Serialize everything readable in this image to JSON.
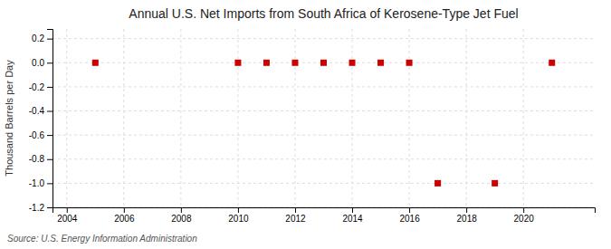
{
  "chart_data": {
    "type": "scatter",
    "title": "Annual U.S. Net Imports from South Africa of Kerosene-Type Jet Fuel",
    "ylabel": "Thousand Barrels per Day",
    "source": "Source: U.S. Energy Information Administration",
    "x": [
      2005,
      2010,
      2011,
      2012,
      2013,
      2014,
      2015,
      2016,
      2017,
      2019,
      2021
    ],
    "values": [
      0,
      0,
      0,
      0,
      0,
      0,
      0,
      0,
      -1,
      -1,
      0
    ],
    "color": "#cc0000",
    "marker": "square",
    "xlim": [
      2003.5,
      2022.5
    ],
    "ylim": [
      -1.2,
      0.28
    ],
    "xticks": [
      2004,
      2006,
      2008,
      2010,
      2012,
      2014,
      2016,
      2018,
      2020
    ],
    "yticks": [
      0.2,
      {
        "value": 0.0,
        "label": "0.0"
      },
      -0.2,
      -0.4,
      -0.6,
      -0.8,
      {
        "value": -1.0,
        "label": "-1.0"
      },
      -1.2
    ],
    "grid": true
  }
}
